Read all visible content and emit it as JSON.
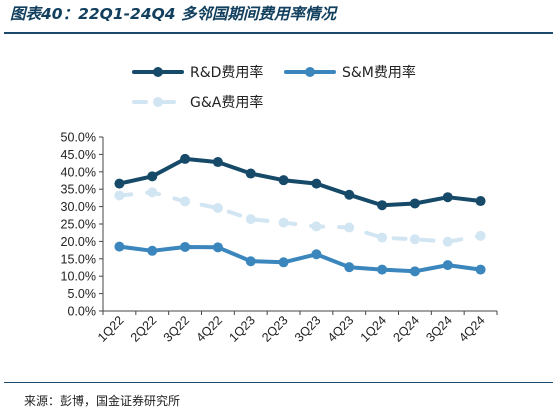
{
  "title": "图表40：22Q1-24Q4 多邻国期间费用率情况",
  "source": "来源：彭博，国金证券研究所",
  "chart_data": {
    "type": "line",
    "title": "图表40：22Q1-24Q4 多邻国期间费用率情况",
    "xlabel": "",
    "ylabel": "",
    "categories": [
      "1Q22",
      "2Q22",
      "3Q22",
      "4Q22",
      "1Q23",
      "2Q23",
      "3Q23",
      "4Q23",
      "1Q24",
      "2Q24",
      "3Q24",
      "4Q24"
    ],
    "ylim": [
      0,
      50
    ],
    "yticks": [
      "0.0%",
      "5.0%",
      "10.0%",
      "15.0%",
      "20.0%",
      "25.0%",
      "30.0%",
      "35.0%",
      "40.0%",
      "45.0%",
      "50.0%"
    ],
    "grid": false,
    "legend_position": "top",
    "series": [
      {
        "name": "R&D费用率",
        "color": "#164a68",
        "style": "solid",
        "values": [
          36.6,
          38.7,
          43.7,
          42.8,
          39.5,
          37.6,
          36.6,
          33.4,
          30.4,
          30.9,
          32.7,
          31.6
        ]
      },
      {
        "name": "S&M费用率",
        "color": "#3a86bd",
        "style": "solid",
        "values": [
          18.5,
          17.3,
          18.4,
          18.3,
          14.3,
          14.0,
          16.3,
          12.6,
          11.9,
          11.4,
          13.2,
          11.9
        ]
      },
      {
        "name": "G&A费用率",
        "color": "#d2e5f3",
        "style": "dashed",
        "values": [
          33.2,
          34.1,
          31.5,
          29.6,
          26.4,
          25.4,
          24.3,
          24.0,
          21.1,
          20.6,
          19.9,
          21.6
        ]
      }
    ]
  }
}
